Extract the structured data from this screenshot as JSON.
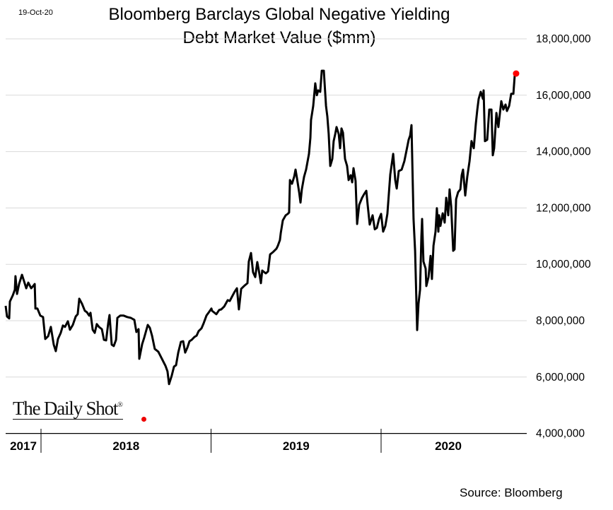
{
  "date_stamp": "19-Oct-20",
  "logo_text": "The Daily Shot®",
  "source": "Source: Bloomberg",
  "chart_data": {
    "type": "line",
    "title_line1": "Bloomberg Barclays Global Negative Yielding",
    "title_line2": "Debt Market Value ($mm)",
    "xlabel": "",
    "ylabel": "",
    "ylim": [
      4000000,
      18000000
    ],
    "y_ticks": [
      "18,000,000",
      "16,000,000",
      "14,000,000",
      "12,000,000",
      "10,000,000",
      "8,000,000",
      "6,000,000",
      "4,000,000"
    ],
    "y_tick_values": [
      18000000,
      16000000,
      14000000,
      12000000,
      10000000,
      8000000,
      6000000,
      4000000
    ],
    "y_axis_position": "right",
    "x_ticks": [
      "2017",
      "2018",
      "2019",
      "2020"
    ],
    "x_range_years": [
      2017.79,
      2020.8
    ],
    "grid": true,
    "line_color": "#000000",
    "last_point_marker_color": "#ff0000",
    "x": [
      2017.792,
      2017.8,
      2017.813,
      2017.817,
      2017.834,
      2017.846,
      2017.85,
      2017.859,
      2017.871,
      2017.888,
      2017.9,
      2017.913,
      2017.925,
      2017.942,
      2017.954,
      2017.963,
      2017.967,
      2017.979,
      2017.996,
      2018.012,
      2018.025,
      2018.042,
      2018.058,
      2018.075,
      2018.087,
      2018.1,
      2018.116,
      2018.129,
      2018.141,
      2018.158,
      2018.17,
      2018.187,
      2018.204,
      2018.216,
      2018.225,
      2018.241,
      2018.249,
      2018.258,
      2018.27,
      2018.283,
      2018.291,
      2018.304,
      2018.316,
      2018.328,
      2018.341,
      2018.358,
      2018.37,
      2018.383,
      2018.395,
      2018.403,
      2018.416,
      2018.428,
      2018.441,
      2018.449,
      2018.466,
      2018.486,
      2018.507,
      2018.528,
      2018.549,
      2018.561,
      2018.574,
      2018.578,
      2018.595,
      2018.607,
      2018.628,
      2018.64,
      2018.653,
      2018.669,
      2018.69,
      2018.715,
      2018.732,
      2018.744,
      2018.753,
      2018.769,
      2018.782,
      2018.794,
      2018.807,
      2018.823,
      2018.836,
      2018.848,
      2018.861,
      2018.873,
      2018.886,
      2018.902,
      2018.915,
      2018.927,
      2018.944,
      2018.956,
      2018.973,
      2018.985,
      2019.002,
      2019.006,
      2019.031,
      2019.048,
      2019.06,
      2019.077,
      2019.098,
      2019.11,
      2019.123,
      2019.139,
      2019.152,
      2019.164,
      2019.177,
      2019.198,
      2019.214,
      2019.222,
      2019.235,
      2019.247,
      2019.26,
      2019.272,
      2019.285,
      2019.293,
      2019.301,
      2019.322,
      2019.335,
      2019.347,
      2019.364,
      2019.385,
      2019.393,
      2019.405,
      2019.41,
      2019.422,
      2019.439,
      2019.451,
      2019.459,
      2019.464,
      2019.476,
      2019.489,
      2019.497,
      2019.505,
      2019.518,
      2019.526,
      2019.534,
      2019.547,
      2019.559,
      2019.576,
      2019.584,
      2019.588,
      2019.601,
      2019.613,
      2019.622,
      2019.63,
      2019.642,
      2019.651,
      2019.663,
      2019.676,
      2019.684,
      2019.692,
      2019.701,
      2019.713,
      2019.721,
      2019.73,
      2019.738,
      2019.751,
      2019.759,
      2019.767,
      2019.776,
      2019.788,
      2019.8,
      2019.809,
      2019.821,
      2019.83,
      2019.838,
      2019.85,
      2019.859,
      2019.871,
      2019.888,
      2019.9,
      2019.913,
      2019.921,
      2019.933,
      2019.95,
      2019.963,
      2019.975,
      2019.988,
      2020.0,
      2020.012,
      2020.025,
      2020.037,
      2020.054,
      2020.071,
      2020.083,
      2020.092,
      2020.104,
      2020.121,
      2020.137,
      2020.154,
      2020.162,
      2020.171,
      2020.179,
      2020.191,
      2020.2,
      2020.212,
      2020.22,
      2020.229,
      2020.237,
      2020.241,
      2020.249,
      2020.262,
      2020.266,
      2020.279,
      2020.291,
      2020.299,
      2020.308,
      2020.32,
      2020.328,
      2020.337,
      2020.341,
      2020.349,
      2020.362,
      2020.374,
      2020.383,
      2020.395,
      2020.403,
      2020.412,
      2020.424,
      2020.432,
      2020.441,
      2020.453,
      2020.466,
      2020.474,
      2020.482,
      2020.495,
      2020.507,
      2020.52,
      2020.532,
      2020.545,
      2020.557,
      2020.566,
      2020.574,
      2020.586,
      2020.599,
      2020.603,
      2020.611,
      2020.624,
      2020.636,
      2020.649,
      2020.657,
      2020.665,
      2020.678,
      2020.69,
      2020.699,
      2020.707,
      2020.719,
      2020.732,
      2020.74,
      2020.753,
      2020.765,
      2020.778,
      2020.786,
      2020.794
    ],
    "values": [
      8530000,
      8150000,
      8080000,
      8680000,
      8900000,
      9100000,
      9580000,
      8950000,
      9300000,
      9630000,
      9400000,
      9150000,
      9350000,
      9150000,
      9230000,
      9300000,
      8430000,
      8430000,
      8180000,
      8130000,
      7350000,
      7450000,
      7780000,
      7150000,
      6920000,
      7350000,
      7570000,
      7830000,
      7780000,
      7980000,
      7680000,
      7850000,
      8150000,
      8230000,
      8780000,
      8600000,
      8480000,
      8350000,
      8300000,
      8180000,
      8280000,
      7680000,
      7570000,
      7880000,
      7780000,
      7700000,
      7320000,
      7300000,
      7900000,
      8200000,
      7150000,
      7100000,
      7320000,
      8100000,
      8180000,
      8180000,
      8130000,
      8100000,
      8030000,
      7600000,
      7700000,
      6650000,
      7170000,
      7400000,
      7850000,
      7750000,
      7470000,
      7000000,
      6900000,
      6600000,
      6400000,
      6200000,
      5750000,
      6050000,
      6370000,
      6420000,
      6870000,
      7250000,
      7270000,
      6870000,
      7050000,
      7270000,
      7320000,
      7420000,
      7470000,
      7630000,
      7730000,
      7900000,
      8180000,
      8280000,
      8430000,
      8350000,
      8230000,
      8380000,
      8400000,
      8500000,
      8730000,
      8700000,
      8850000,
      9030000,
      9150000,
      8400000,
      9130000,
      9250000,
      9330000,
      10100000,
      10400000,
      9720000,
      9550000,
      10080000,
      9650000,
      9330000,
      9780000,
      9680000,
      9750000,
      10350000,
      10430000,
      10560000,
      10660000,
      10860000,
      11110000,
      11560000,
      11740000,
      11790000,
      11840000,
      12990000,
      12860000,
      13110000,
      13360000,
      13060000,
      12560000,
      12190000,
      12660000,
      13110000,
      13360000,
      13920000,
      14490000,
      15120000,
      15620000,
      16420000,
      16000000,
      16170000,
      16120000,
      16870000,
      16870000,
      15620000,
      15240000,
      14620000,
      13490000,
      13740000,
      14370000,
      14620000,
      14870000,
      14620000,
      14120000,
      14820000,
      14670000,
      13740000,
      13490000,
      12990000,
      13160000,
      12910000,
      13410000,
      12960000,
      11430000,
      12110000,
      12360000,
      12490000,
      12610000,
      12110000,
      11410000,
      11740000,
      11240000,
      11290000,
      11610000,
      11790000,
      11160000,
      11360000,
      11790000,
      13190000,
      13920000,
      12990000,
      12690000,
      13310000,
      13360000,
      13660000,
      14170000,
      14420000,
      14570000,
      14940000,
      11610000,
      10480000,
      7670000,
      8600000,
      9100000,
      10980000,
      11610000,
      10100000,
      9850000,
      9230000,
      9550000,
      10300000,
      9480000,
      10660000,
      11160000,
      11990000,
      11160000,
      11740000,
      11360000,
      11810000,
      11480000,
      12360000,
      11740000,
      12660000,
      12060000,
      10480000,
      10530000,
      12310000,
      12560000,
      12660000,
      13160000,
      13360000,
      12440000,
      13110000,
      13660000,
      14370000,
      14120000,
      14990000,
      15490000,
      15870000,
      16120000,
      15870000,
      16170000,
      14370000,
      14420000,
      15490000,
      15490000,
      13870000,
      14120000,
      15370000,
      14870000,
      15370000,
      15790000,
      15490000,
      15670000,
      15440000,
      15620000,
      16050000,
      16050000,
      16700000,
      16770000
    ]
  }
}
